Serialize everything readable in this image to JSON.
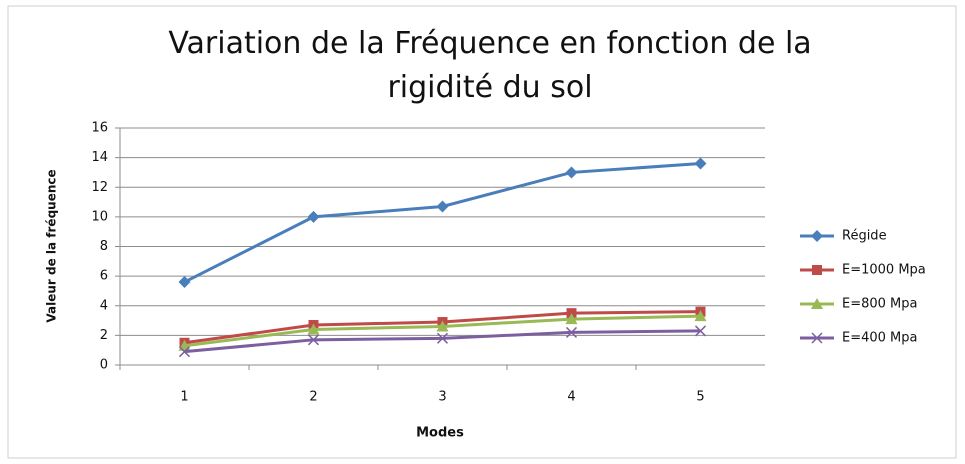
{
  "chart_data": {
    "type": "line",
    "title": "Variation de la Fréquence en fonction de la rigidité du sol",
    "xlabel": "Modes",
    "ylabel": "Valeur de la fréquence",
    "categories": [
      "1",
      "2",
      "3",
      "4",
      "5"
    ],
    "series": [
      {
        "name": "Régide",
        "color": "#4a7ebb",
        "marker": "diamond",
        "values": [
          5.6,
          10.0,
          10.7,
          13.0,
          13.6
        ]
      },
      {
        "name": "E=1000 Mpa",
        "color": "#be4b48",
        "marker": "square",
        "values": [
          1.5,
          2.7,
          2.9,
          3.5,
          3.6
        ]
      },
      {
        "name": "E=800 Mpa",
        "color": "#98b954",
        "marker": "triangle",
        "values": [
          1.3,
          2.4,
          2.6,
          3.1,
          3.3
        ]
      },
      {
        "name": "E=400 Mpa",
        "color": "#7d5fa0",
        "marker": "x",
        "values": [
          0.9,
          1.7,
          1.8,
          2.2,
          2.3
        ]
      }
    ],
    "ylim": [
      0,
      16
    ],
    "yticks": [
      0,
      2,
      4,
      6,
      8,
      10,
      12,
      14,
      16
    ],
    "grid": true,
    "legend": "right"
  }
}
